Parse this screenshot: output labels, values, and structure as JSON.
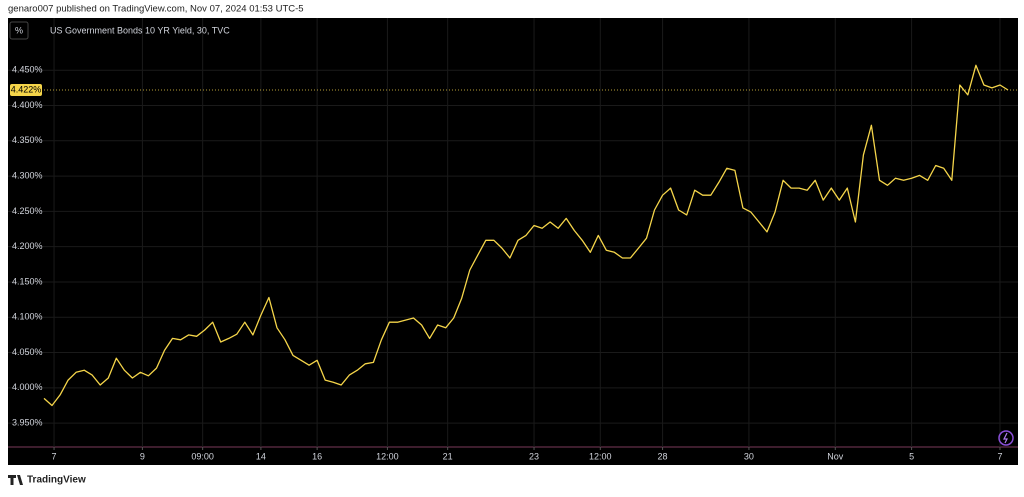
{
  "header": "genaro007 published on TradingView.com, Nov 07, 2024 01:53 UTC-5",
  "unit_button": "%",
  "footer": "TradingView",
  "chart_data": {
    "type": "line",
    "x": [
      0,
      1,
      2,
      3,
      4,
      5,
      6,
      7,
      8,
      9,
      10,
      11,
      12,
      13,
      14,
      15,
      16,
      17,
      18,
      19,
      20,
      21,
      22,
      23,
      24,
      25,
      26,
      27,
      28,
      29,
      30,
      31,
      32,
      33,
      34,
      35,
      36,
      37,
      38,
      39,
      40,
      41,
      42,
      43,
      44,
      45,
      46,
      47,
      48,
      49,
      50,
      51,
      52,
      53,
      54,
      55,
      56,
      57,
      58,
      59,
      60,
      61,
      62,
      63,
      64,
      65,
      66,
      67,
      68,
      69,
      70,
      71,
      72,
      73,
      74,
      75,
      76,
      77,
      78,
      79,
      80,
      81,
      82,
      83,
      84,
      85,
      86,
      87,
      88,
      89,
      90,
      91,
      92,
      93,
      94,
      95,
      96,
      97,
      98,
      99,
      100,
      101,
      102,
      103,
      104,
      105,
      106,
      107,
      108,
      109,
      110,
      111,
      112,
      113,
      114,
      115,
      116,
      117,
      118,
      119,
      120
    ],
    "series": [
      {
        "name": "US Government Bonds 10 YR Yield, 30, TVC",
        "color": "#f5d54a",
        "values": [
          3.985,
          3.975,
          3.99,
          4.011,
          4.022,
          4.025,
          4.018,
          4.004,
          4.014,
          4.042,
          4.025,
          4.014,
          4.022,
          4.017,
          4.028,
          4.053,
          4.07,
          4.068,
          4.075,
          4.073,
          4.082,
          4.093,
          4.065,
          4.07,
          4.076,
          4.093,
          4.075,
          4.103,
          4.128,
          4.085,
          4.068,
          4.046,
          4.039,
          4.032,
          4.039,
          4.011,
          4.008,
          4.004,
          4.018,
          4.025,
          4.034,
          4.036,
          4.068,
          4.093,
          4.093,
          4.096,
          4.099,
          4.089,
          4.07,
          4.089,
          4.085,
          4.099,
          4.127,
          4.167,
          4.188,
          4.209,
          4.209,
          4.198,
          4.184,
          4.209,
          4.216,
          4.23,
          4.226,
          4.235,
          4.226,
          4.24,
          4.223,
          4.209,
          4.192,
          4.216,
          4.195,
          4.192,
          4.184,
          4.184,
          4.198,
          4.212,
          4.252,
          4.273,
          4.283,
          4.252,
          4.245,
          4.28,
          4.273,
          4.273,
          4.291,
          4.311,
          4.308,
          4.255,
          4.249,
          4.235,
          4.221,
          4.249,
          4.294,
          4.283,
          4.283,
          4.28,
          4.294,
          4.266,
          4.283,
          4.266,
          4.283,
          4.235,
          4.33,
          4.372,
          4.294,
          4.287,
          4.297,
          4.294,
          4.297,
          4.301,
          4.294,
          4.315,
          4.311,
          4.294,
          4.429,
          4.415,
          4.457,
          4.429,
          4.425,
          4.429,
          4.422
        ]
      }
    ],
    "xlim": [
      0,
      120
    ],
    "xticks": [
      {
        "value": 1.25,
        "label": "7"
      },
      {
        "value": 12.25,
        "label": "9"
      },
      {
        "value": 19.75,
        "label": "09:00"
      },
      {
        "value": 27,
        "label": "14"
      },
      {
        "value": 34,
        "label": "16"
      },
      {
        "value": 42.75,
        "label": "12:00"
      },
      {
        "value": 50.25,
        "label": "21"
      },
      {
        "value": 61,
        "label": "23"
      },
      {
        "value": 69.25,
        "label": "12:00"
      },
      {
        "value": 77,
        "label": "28"
      },
      {
        "value": 87.75,
        "label": "30"
      },
      {
        "value": 98.5,
        "label": "Nov"
      },
      {
        "value": 108,
        "label": "5"
      },
      {
        "value": 119,
        "label": "7"
      }
    ],
    "ylim": [
      3.919,
      4.524
    ],
    "yticks": [
      {
        "value": 3.95,
        "label": "3.950%"
      },
      {
        "value": 4.0,
        "label": "4.000%"
      },
      {
        "value": 4.05,
        "label": "4.050%"
      },
      {
        "value": 4.1,
        "label": "4.100%"
      },
      {
        "value": 4.15,
        "label": "4.150%"
      },
      {
        "value": 4.2,
        "label": "4.200%"
      },
      {
        "value": 4.25,
        "label": "4.250%"
      },
      {
        "value": 4.3,
        "label": "4.300%"
      },
      {
        "value": 4.35,
        "label": "4.350%"
      },
      {
        "value": 4.4,
        "label": "4.400%"
      },
      {
        "value": 4.45,
        "label": "4.450%"
      }
    ],
    "last_price": {
      "value": 4.422,
      "label": "4.422%"
    },
    "grid": true
  }
}
